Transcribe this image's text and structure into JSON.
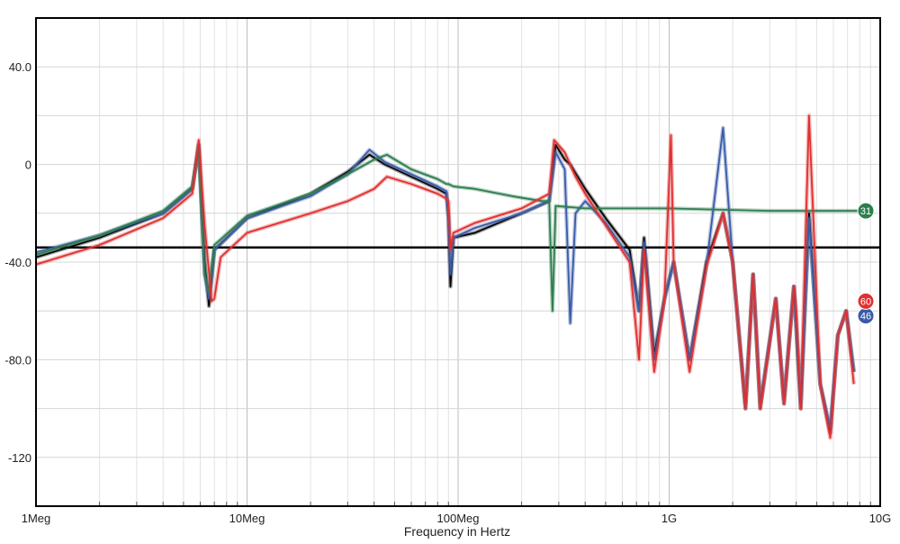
{
  "chart_data": {
    "type": "line",
    "title": "",
    "xlabel": "Frequency in Hertz",
    "ylabel": "",
    "x_scale": "log",
    "xlim": [
      1000000,
      10000000000
    ],
    "ylim": [
      -140,
      60
    ],
    "x_ticks": [
      {
        "value": 1000000,
        "label": "1Meg"
      },
      {
        "value": 10000000,
        "label": "10Meg"
      },
      {
        "value": 100000000,
        "label": "100Meg"
      },
      {
        "value": 1000000000,
        "label": "1G"
      },
      {
        "value": 10000000000,
        "label": "10G"
      }
    ],
    "y_ticks": [
      {
        "value": 40,
        "label": "40.0"
      },
      {
        "value": 0,
        "label": "0"
      },
      {
        "value": -40,
        "label": "-40.0"
      },
      {
        "value": -80,
        "label": "-80.0"
      },
      {
        "value": -120,
        "label": "-120"
      }
    ],
    "y_grid_minor_step": 20,
    "grid": true,
    "reference_line": {
      "y": -34,
      "color": "#000000"
    },
    "series": [
      {
        "color": "#000000",
        "marker_label": "",
        "points": [
          [
            1000000,
            -38
          ],
          [
            2000000,
            -30
          ],
          [
            4000000,
            -20
          ],
          [
            5500000,
            -10
          ],
          [
            5900000,
            8
          ],
          [
            6300000,
            -40
          ],
          [
            6600000,
            -58
          ],
          [
            7000000,
            -35
          ],
          [
            10000000,
            -22
          ],
          [
            20000000,
            -12
          ],
          [
            30000000,
            -3
          ],
          [
            38000000,
            4
          ],
          [
            45000000,
            0
          ],
          [
            60000000,
            -5
          ],
          [
            80000000,
            -10
          ],
          [
            88000000,
            -12
          ],
          [
            90000000,
            -22
          ],
          [
            92000000,
            -50
          ],
          [
            95000000,
            -30
          ],
          [
            120000000,
            -28
          ],
          [
            200000000,
            -20
          ],
          [
            270000000,
            -15
          ],
          [
            290000000,
            8
          ],
          [
            320000000,
            2
          ],
          [
            340000000,
            0
          ],
          [
            400000000,
            -10
          ],
          [
            500000000,
            -22
          ],
          [
            650000000,
            -35
          ],
          [
            720000000,
            -60
          ],
          [
            760000000,
            -30
          ],
          [
            850000000,
            -78
          ],
          [
            950000000,
            -55
          ],
          [
            1050000000,
            -40
          ],
          [
            1250000000,
            -80
          ],
          [
            1500000000,
            -40
          ],
          [
            1800000000,
            -20
          ],
          [
            2000000000,
            -40
          ],
          [
            2300000000,
            -100
          ],
          [
            2500000000,
            -45
          ],
          [
            2700000000,
            -100
          ],
          [
            3200000000,
            -55
          ],
          [
            3500000000,
            -98
          ],
          [
            3900000000,
            -50
          ],
          [
            4200000000,
            -100
          ],
          [
            4600000000,
            -20
          ],
          [
            5200000000,
            -90
          ],
          [
            5800000000,
            -110
          ],
          [
            6300000000,
            -70
          ],
          [
            6900000000,
            -60
          ],
          [
            7500000000,
            -85
          ]
        ]
      },
      {
        "color": "#3a5ba8",
        "marker_label": "46",
        "points": [
          [
            1000000,
            -36
          ],
          [
            2000000,
            -29
          ],
          [
            4000000,
            -20
          ],
          [
            5500000,
            -10
          ],
          [
            5900000,
            8
          ],
          [
            6300000,
            -45
          ],
          [
            6600000,
            -55
          ],
          [
            7000000,
            -35
          ],
          [
            10000000,
            -22
          ],
          [
            20000000,
            -13
          ],
          [
            30000000,
            -4
          ],
          [
            38000000,
            6
          ],
          [
            45000000,
            1
          ],
          [
            60000000,
            -4
          ],
          [
            80000000,
            -9
          ],
          [
            88000000,
            -11
          ],
          [
            90000000,
            -22
          ],
          [
            92000000,
            -45
          ],
          [
            95000000,
            -30
          ],
          [
            120000000,
            -26
          ],
          [
            200000000,
            -20
          ],
          [
            270000000,
            -15
          ],
          [
            290000000,
            5
          ],
          [
            320000000,
            -2
          ],
          [
            340000000,
            -65
          ],
          [
            360000000,
            -20
          ],
          [
            400000000,
            -15
          ],
          [
            500000000,
            -24
          ],
          [
            650000000,
            -38
          ],
          [
            720000000,
            -60
          ],
          [
            760000000,
            -32
          ],
          [
            850000000,
            -80
          ],
          [
            950000000,
            -55
          ],
          [
            1050000000,
            -40
          ],
          [
            1250000000,
            -80
          ],
          [
            1500000000,
            -42
          ],
          [
            1800000000,
            15
          ],
          [
            2000000000,
            -40
          ],
          [
            2300000000,
            -98
          ],
          [
            2500000000,
            -45
          ],
          [
            2700000000,
            -98
          ],
          [
            3200000000,
            -55
          ],
          [
            3500000000,
            -96
          ],
          [
            3900000000,
            -50
          ],
          [
            4200000000,
            -98
          ],
          [
            4600000000,
            -22
          ],
          [
            5200000000,
            -90
          ],
          [
            5800000000,
            -108
          ],
          [
            6300000000,
            -70
          ],
          [
            6900000000,
            -60
          ],
          [
            7500000000,
            -85
          ]
        ]
      },
      {
        "color": "#2e7d4f",
        "marker_label": "31",
        "points": [
          [
            1000000,
            -37
          ],
          [
            2000000,
            -29
          ],
          [
            4000000,
            -19
          ],
          [
            5500000,
            -9
          ],
          [
            5900000,
            6
          ],
          [
            6300000,
            -45
          ],
          [
            6600000,
            -52
          ],
          [
            7000000,
            -33
          ],
          [
            10000000,
            -21
          ],
          [
            20000000,
            -12
          ],
          [
            30000000,
            -4
          ],
          [
            40000000,
            2
          ],
          [
            46000000,
            4
          ],
          [
            60000000,
            -2
          ],
          [
            80000000,
            -6
          ],
          [
            88000000,
            -8
          ],
          [
            90000000,
            -8
          ],
          [
            95000000,
            -9
          ],
          [
            120000000,
            -10
          ],
          [
            180000000,
            -13
          ],
          [
            250000000,
            -15
          ],
          [
            270000000,
            -15
          ],
          [
            280000000,
            -60
          ],
          [
            290000000,
            -17
          ],
          [
            400000000,
            -18
          ],
          [
            700000000,
            -18
          ],
          [
            1000000000,
            -18
          ],
          [
            3000000000,
            -19
          ],
          [
            8000000000,
            -19
          ]
        ]
      },
      {
        "color": "#e03030",
        "marker_label": "60",
        "points": [
          [
            1000000,
            -41
          ],
          [
            2000000,
            -33
          ],
          [
            4000000,
            -22
          ],
          [
            5500000,
            -12
          ],
          [
            5900000,
            10
          ],
          [
            6300000,
            -25
          ],
          [
            6800000,
            -56
          ],
          [
            7000000,
            -55
          ],
          [
            7500000,
            -38
          ],
          [
            10000000,
            -28
          ],
          [
            20000000,
            -20
          ],
          [
            30000000,
            -15
          ],
          [
            40000000,
            -10
          ],
          [
            46000000,
            -5
          ],
          [
            60000000,
            -8
          ],
          [
            80000000,
            -12
          ],
          [
            88000000,
            -14
          ],
          [
            90000000,
            -15
          ],
          [
            92000000,
            -35
          ],
          [
            95000000,
            -28
          ],
          [
            120000000,
            -24
          ],
          [
            200000000,
            -18
          ],
          [
            270000000,
            -12
          ],
          [
            285000000,
            10
          ],
          [
            320000000,
            5
          ],
          [
            360000000,
            -5
          ],
          [
            400000000,
            -12
          ],
          [
            500000000,
            -25
          ],
          [
            650000000,
            -40
          ],
          [
            720000000,
            -80
          ],
          [
            760000000,
            -35
          ],
          [
            850000000,
            -85
          ],
          [
            950000000,
            -55
          ],
          [
            1020000000,
            12
          ],
          [
            1050000000,
            -40
          ],
          [
            1250000000,
            -85
          ],
          [
            1500000000,
            -42
          ],
          [
            1800000000,
            -20
          ],
          [
            2000000000,
            -40
          ],
          [
            2300000000,
            -100
          ],
          [
            2500000000,
            -45
          ],
          [
            2700000000,
            -100
          ],
          [
            3200000000,
            -55
          ],
          [
            3500000000,
            -98
          ],
          [
            3900000000,
            -50
          ],
          [
            4000000000,
            -60
          ],
          [
            4200000000,
            -100
          ],
          [
            4600000000,
            20
          ],
          [
            5200000000,
            -90
          ],
          [
            5800000000,
            -112
          ],
          [
            6300000000,
            -70
          ],
          [
            6900000000,
            -60
          ],
          [
            7500000000,
            -90
          ]
        ]
      }
    ]
  }
}
